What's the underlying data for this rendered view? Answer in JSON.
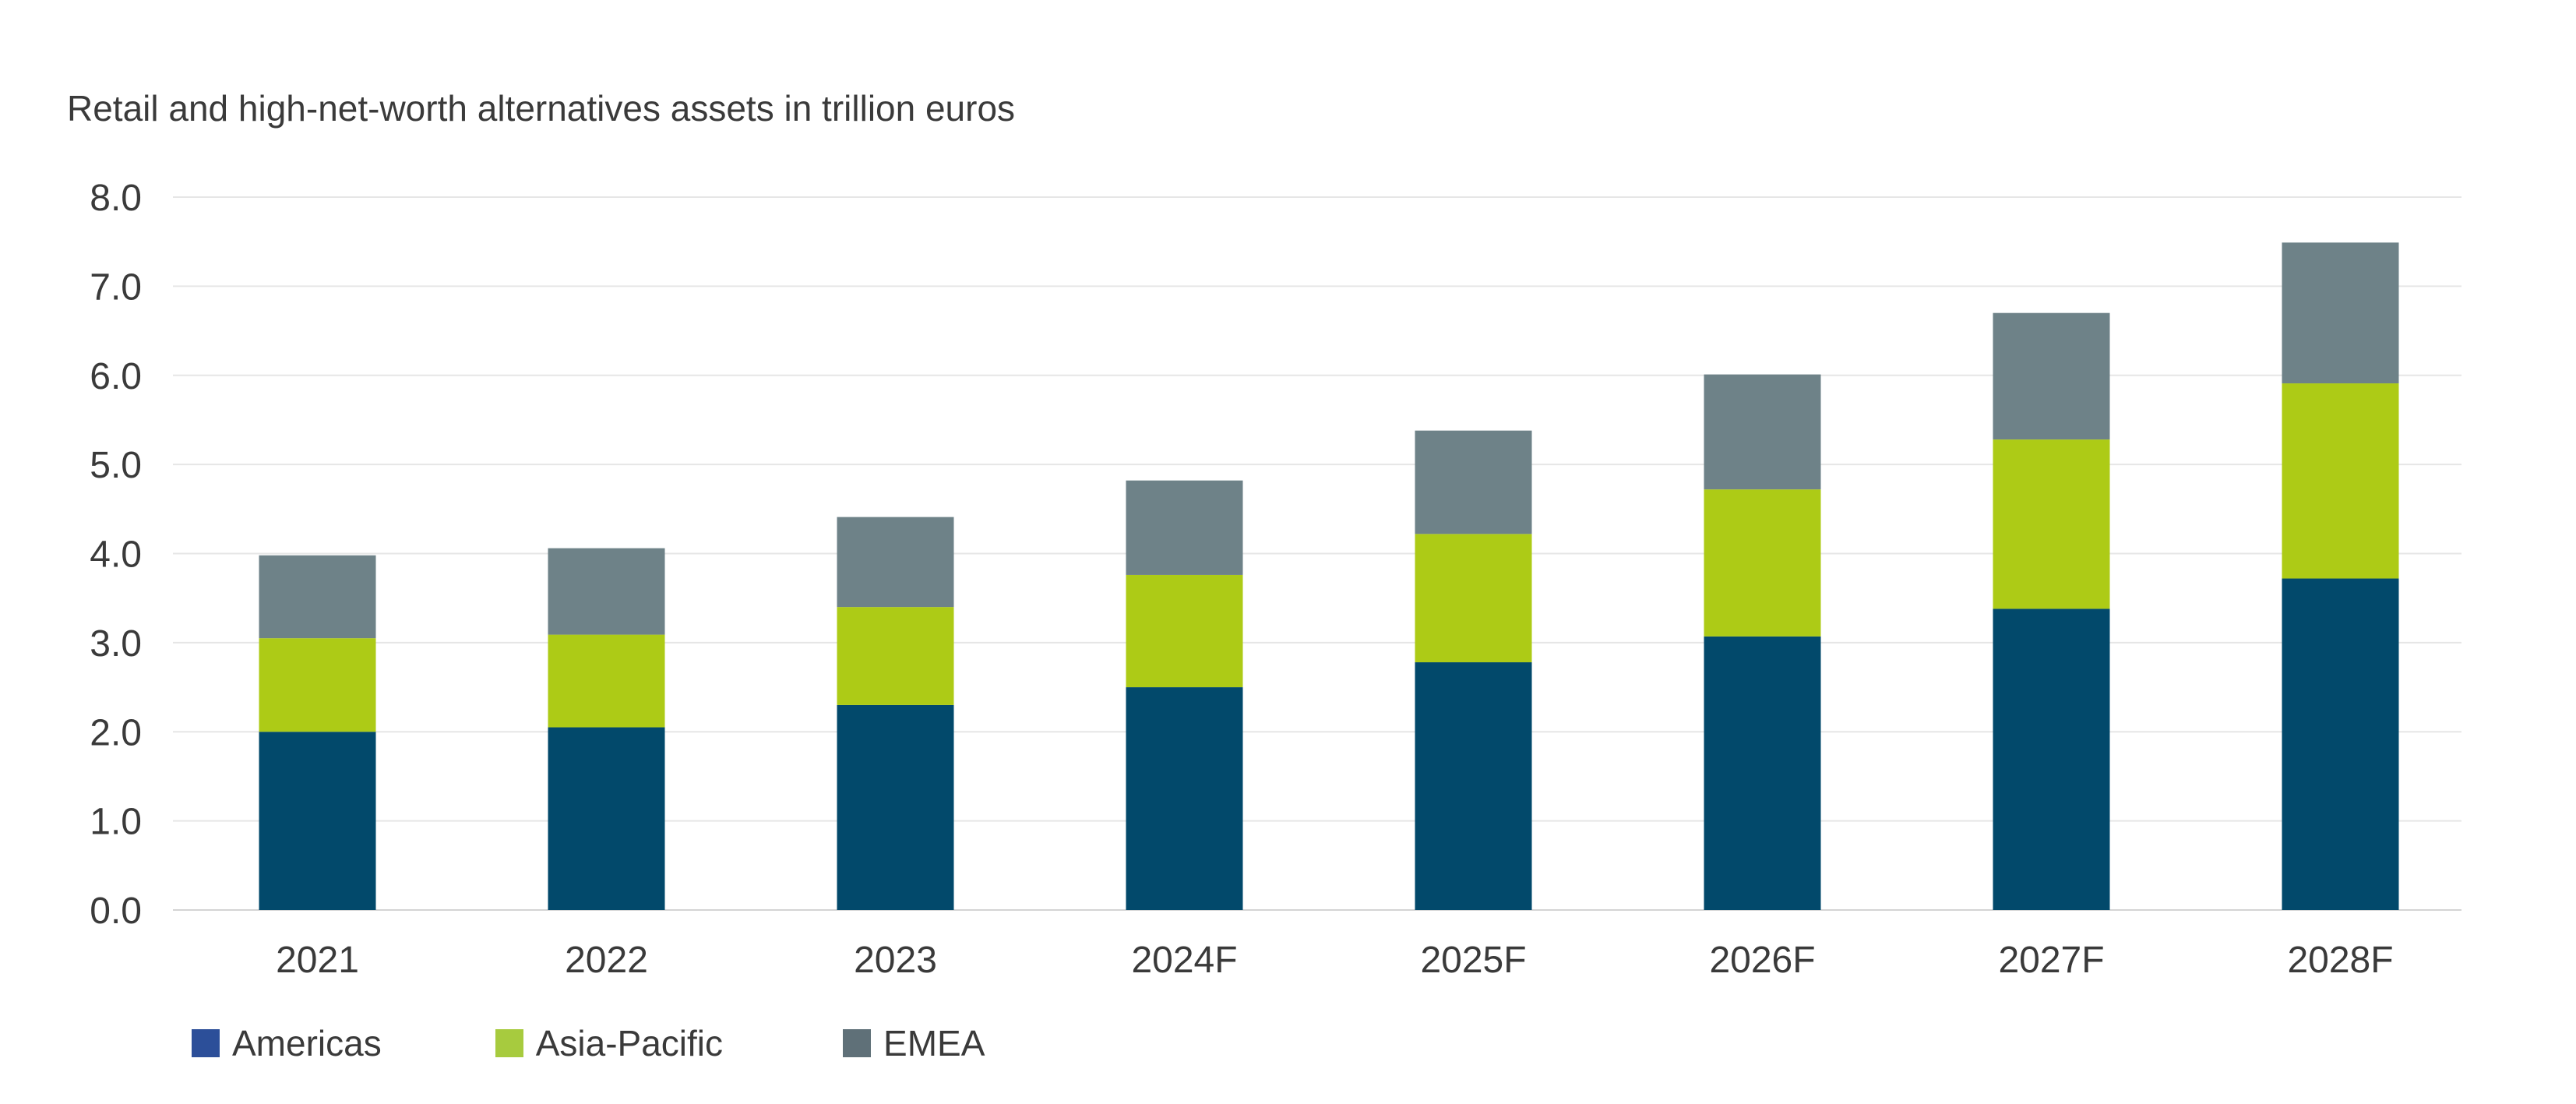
{
  "chart_data": {
    "type": "bar",
    "stacked": true,
    "title": "Retail and high-net-worth alternatives assets in trillion euros",
    "categories": [
      "2021",
      "2022",
      "2023",
      "2024F",
      "2025F",
      "2026F",
      "2027F",
      "2028F"
    ],
    "series": [
      {
        "name": "Americas",
        "color": "#02496b",
        "legend_color": "#2c4f99",
        "values": [
          2.0,
          2.05,
          2.3,
          2.5,
          2.78,
          3.07,
          3.38,
          3.72
        ]
      },
      {
        "name": "Asia-Pacific",
        "color": "#adcb16",
        "legend_color": "#a7cb3e",
        "values": [
          1.05,
          1.04,
          1.1,
          1.26,
          1.44,
          1.65,
          1.9,
          2.19
        ]
      },
      {
        "name": "EMEA",
        "color": "#6e8288",
        "legend_color": "#5f7078",
        "values": [
          0.93,
          0.97,
          1.01,
          1.06,
          1.16,
          1.29,
          1.42,
          1.58
        ]
      }
    ],
    "ylim": [
      0,
      8
    ],
    "yticks": [
      "0.0",
      "1.0",
      "2.0",
      "3.0",
      "4.0",
      "5.0",
      "6.0",
      "7.0",
      "8.0"
    ],
    "xlabel": "",
    "ylabel": "",
    "grid": true,
    "legend_position": "bottom-left"
  }
}
